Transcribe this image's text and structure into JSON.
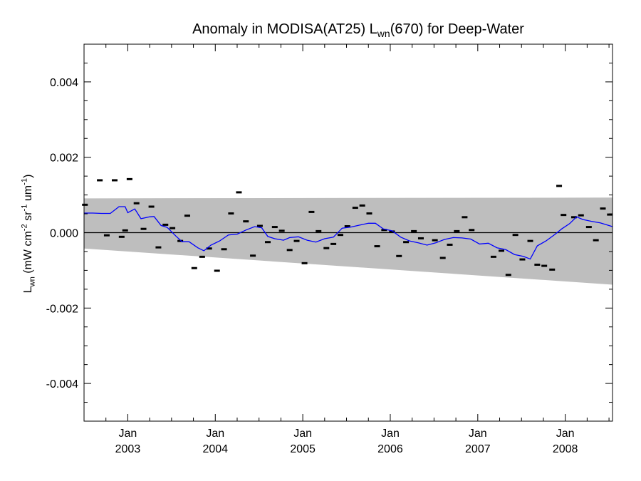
{
  "chart_data": {
    "type": "scatter",
    "title": {
      "pre": "Anomaly in MODISA(AT25) L",
      "sub": "wn",
      "post": "(670) for Deep-Water"
    },
    "ylabel": {
      "a": "L",
      "a_sub": "wn",
      "b": " (mW cm",
      "b_sup": "-2",
      "c": " sr",
      "c_sup": "-1",
      "d": " um",
      "d_sup": "-1",
      "e": ")"
    },
    "xlim": [
      2002.5,
      2008.54
    ],
    "ylim": [
      -0.005,
      0.005
    ],
    "yticks": [
      {
        "value": 0.004,
        "label": "0.004"
      },
      {
        "value": 0.002,
        "label": "0.002"
      },
      {
        "value": 0.0,
        "label": "0.000"
      },
      {
        "value": -0.002,
        "label": "-0.002"
      },
      {
        "value": -0.004,
        "label": "-0.004"
      }
    ],
    "xticks": [
      {
        "value": 2003.0,
        "month": "Jan",
        "year": "2003"
      },
      {
        "value": 2004.0,
        "month": "Jan",
        "year": "2004"
      },
      {
        "value": 2005.0,
        "month": "Jan",
        "year": "2005"
      },
      {
        "value": 2006.0,
        "month": "Jan",
        "year": "2006"
      },
      {
        "value": 2007.0,
        "month": "Jan",
        "year": "2007"
      },
      {
        "value": 2008.0,
        "month": "Jan",
        "year": "2008"
      }
    ],
    "band": {
      "x": [
        2002.5,
        2008.54
      ],
      "upper": [
        0.00091,
        0.00093
      ],
      "lower": [
        -0.00042,
        -0.00138
      ],
      "color": "#bebebe"
    },
    "zero_line": 0.0,
    "series": [
      {
        "kind": "points",
        "color": "#000000",
        "points": [
          [
            2002.51,
            0.00074
          ],
          [
            2002.68,
            0.00139
          ],
          [
            2002.76,
            -7e-05
          ],
          [
            2002.85,
            0.00139
          ],
          [
            2002.93,
            -0.00011
          ],
          [
            2002.97,
            6e-05
          ],
          [
            2003.02,
            0.00142
          ],
          [
            2003.1,
            0.00078
          ],
          [
            2003.18,
            0.0001
          ],
          [
            2003.27,
            0.00069
          ],
          [
            2003.35,
            -0.00039
          ],
          [
            2003.43,
            0.00021
          ],
          [
            2003.51,
            0.00012
          ],
          [
            2003.6,
            -0.00022
          ],
          [
            2003.68,
            0.00045
          ],
          [
            2003.76,
            -0.00094
          ],
          [
            2003.85,
            -0.00064
          ],
          [
            2003.93,
            -0.00042
          ],
          [
            2004.02,
            -0.00101
          ],
          [
            2004.1,
            -0.00044
          ],
          [
            2004.18,
            0.00051
          ],
          [
            2004.27,
            0.00107
          ],
          [
            2004.35,
            0.0003
          ],
          [
            2004.43,
            -0.00061
          ],
          [
            2004.51,
            0.00018
          ],
          [
            2004.6,
            -0.00025
          ],
          [
            2004.68,
            0.00015
          ],
          [
            2004.76,
            5e-05
          ],
          [
            2004.85,
            -0.00046
          ],
          [
            2004.93,
            -0.00022
          ],
          [
            2005.02,
            -0.00081
          ],
          [
            2005.1,
            0.00055
          ],
          [
            2005.18,
            4e-05
          ],
          [
            2005.27,
            -0.00041
          ],
          [
            2005.35,
            -0.0003
          ],
          [
            2005.43,
            -6e-05
          ],
          [
            2005.51,
            0.00017
          ],
          [
            2005.6,
            0.00066
          ],
          [
            2005.68,
            0.00072
          ],
          [
            2005.76,
            0.00051
          ],
          [
            2005.85,
            -0.00036
          ],
          [
            2005.93,
            7e-05
          ],
          [
            2006.02,
            3e-05
          ],
          [
            2006.1,
            -0.00062
          ],
          [
            2006.18,
            -0.00025
          ],
          [
            2006.27,
            4e-05
          ],
          [
            2006.35,
            -0.00015
          ],
          [
            2006.51,
            -0.0002
          ],
          [
            2006.6,
            -0.00067
          ],
          [
            2006.68,
            -0.00032
          ],
          [
            2006.76,
            4e-05
          ],
          [
            2006.85,
            0.00041
          ],
          [
            2006.93,
            7e-05
          ],
          [
            2007.18,
            -0.00064
          ],
          [
            2007.27,
            -0.00048
          ],
          [
            2007.35,
            -0.00112
          ],
          [
            2007.43,
            -6e-05
          ],
          [
            2007.51,
            -0.00071
          ],
          [
            2007.6,
            -0.00022
          ],
          [
            2007.68,
            -0.00085
          ],
          [
            2007.76,
            -0.00088
          ],
          [
            2007.85,
            -0.00098
          ],
          [
            2007.93,
            0.00124
          ],
          [
            2007.98,
            0.00047
          ],
          [
            2008.1,
            0.00041
          ],
          [
            2008.18,
            0.00046
          ],
          [
            2008.27,
            0.00015
          ],
          [
            2008.35,
            -0.0002
          ],
          [
            2008.43,
            0.00064
          ],
          [
            2008.51,
            0.00048
          ]
        ]
      },
      {
        "kind": "line",
        "color": "#0000ff",
        "points": [
          [
            2002.5,
            0.00052
          ],
          [
            2002.6,
            0.00052
          ],
          [
            2002.7,
            0.00051
          ],
          [
            2002.8,
            0.00051
          ],
          [
            2002.9,
            0.00069
          ],
          [
            2002.97,
            0.00069
          ],
          [
            2003.0,
            0.00053
          ],
          [
            2003.08,
            0.00063
          ],
          [
            2003.15,
            0.00037
          ],
          [
            2003.25,
            0.00042
          ],
          [
            2003.3,
            0.00043
          ],
          [
            2003.38,
            0.00019
          ],
          [
            2003.45,
            0.00014
          ],
          [
            2003.55,
            -9e-05
          ],
          [
            2003.62,
            -0.00024
          ],
          [
            2003.7,
            -0.00024
          ],
          [
            2003.8,
            -0.0004
          ],
          [
            2003.87,
            -0.00048
          ],
          [
            2003.95,
            -0.00033
          ],
          [
            2004.05,
            -0.00022
          ],
          [
            2004.15,
            -6e-05
          ],
          [
            2004.25,
            -4e-05
          ],
          [
            2004.35,
            7e-05
          ],
          [
            2004.45,
            0.00016
          ],
          [
            2004.53,
            0.00013
          ],
          [
            2004.6,
            -0.0001
          ],
          [
            2004.68,
            -0.00016
          ],
          [
            2004.78,
            -0.0002
          ],
          [
            2004.85,
            -0.00013
          ],
          [
            2004.95,
            -0.00011
          ],
          [
            2005.05,
            -0.0002
          ],
          [
            2005.15,
            -0.00025
          ],
          [
            2005.25,
            -0.00016
          ],
          [
            2005.35,
            -0.00012
          ],
          [
            2005.45,
            0.00012
          ],
          [
            2005.55,
            0.00015
          ],
          [
            2005.65,
            0.0002
          ],
          [
            2005.75,
            0.00025
          ],
          [
            2005.83,
            0.00025
          ],
          [
            2005.92,
            0.0001
          ],
          [
            2006.02,
            5e-05
          ],
          [
            2006.12,
            -0.00012
          ],
          [
            2006.22,
            -0.00022
          ],
          [
            2006.32,
            -0.00027
          ],
          [
            2006.42,
            -0.00033
          ],
          [
            2006.52,
            -0.00027
          ],
          [
            2006.62,
            -0.00018
          ],
          [
            2006.72,
            -0.00013
          ],
          [
            2006.82,
            -0.00014
          ],
          [
            2006.92,
            -0.00017
          ],
          [
            2007.02,
            -0.0003
          ],
          [
            2007.12,
            -0.00028
          ],
          [
            2007.22,
            -0.0004
          ],
          [
            2007.32,
            -0.00045
          ],
          [
            2007.42,
            -0.00058
          ],
          [
            2007.52,
            -0.00063
          ],
          [
            2007.6,
            -0.0007
          ],
          [
            2007.68,
            -0.00035
          ],
          [
            2007.78,
            -0.00022
          ],
          [
            2007.88,
            -5e-05
          ],
          [
            2007.96,
            0.0001
          ],
          [
            2008.05,
            0.00024
          ],
          [
            2008.13,
            0.00042
          ],
          [
            2008.2,
            0.00035
          ],
          [
            2008.3,
            0.0003
          ],
          [
            2008.4,
            0.00026
          ],
          [
            2008.54,
            0.00016
          ]
        ]
      }
    ]
  }
}
